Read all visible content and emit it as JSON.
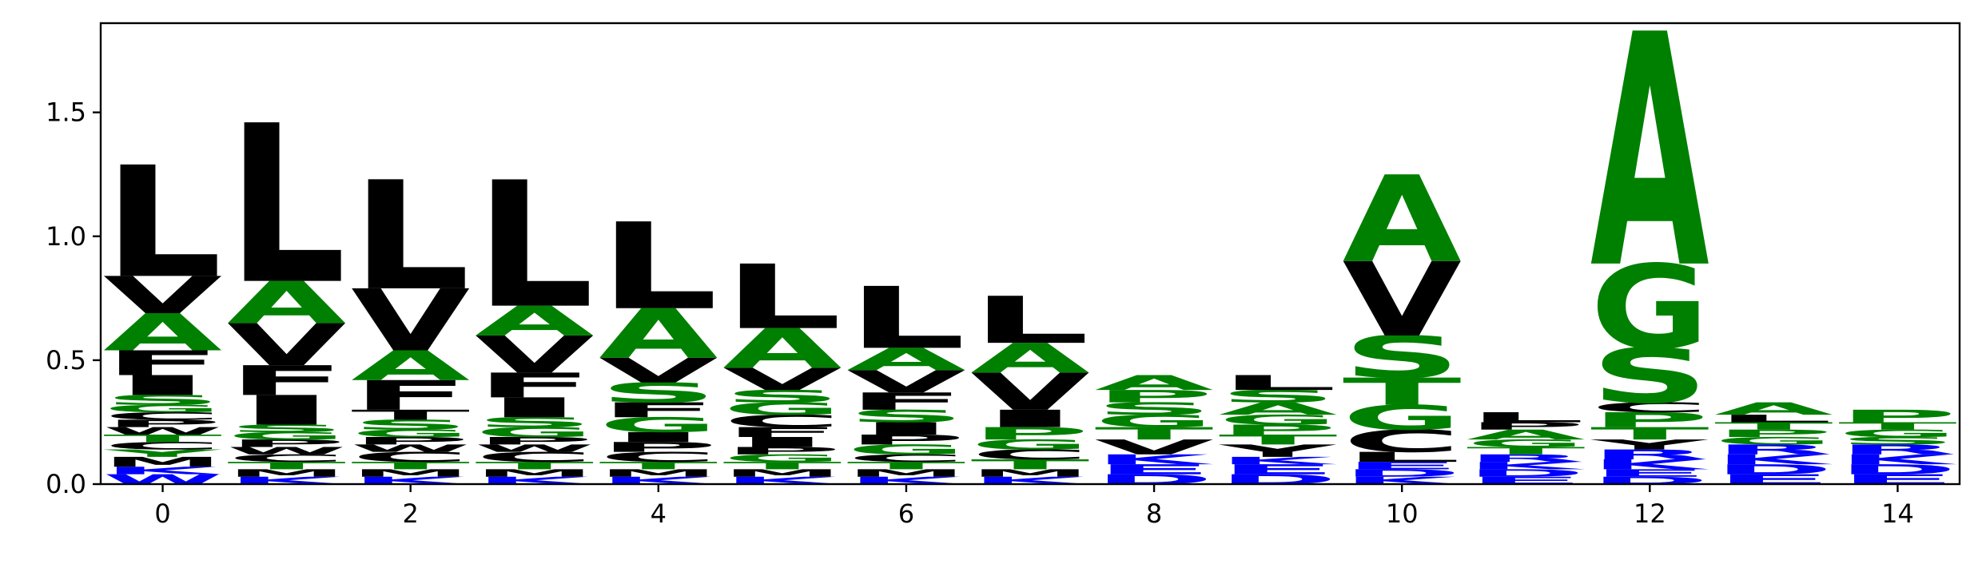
{
  "chart_data": {
    "type": "sequence-logo",
    "title": "",
    "xlabel": "",
    "ylabel": "",
    "xlim": [
      -0.5,
      14.5
    ],
    "ylim": [
      0,
      1.86
    ],
    "x_ticks": [
      0,
      2,
      4,
      6,
      8,
      10,
      12,
      14
    ],
    "x_tick_labels": [
      "0",
      "2",
      "4",
      "6",
      "8",
      "10",
      "12",
      "14"
    ],
    "y_ticks": [
      0.0,
      0.5,
      1.0,
      1.5
    ],
    "y_tick_labels": [
      "0.0",
      "0.5",
      "1.0",
      "1.5"
    ],
    "grid": false,
    "color_scheme": {
      "green": "#008000",
      "blue": "#0000ff",
      "black": "#000000"
    },
    "positions": [
      {
        "pos": 0,
        "stack": [
          {
            "letter": "W",
            "height": 0.04,
            "color": "blue"
          },
          {
            "letter": "K",
            "height": 0.03,
            "color": "blue"
          },
          {
            "letter": "M",
            "height": 0.04,
            "color": "black"
          },
          {
            "letter": "Y",
            "height": 0.03,
            "color": "green"
          },
          {
            "letter": "C",
            "height": 0.03,
            "color": "black"
          },
          {
            "letter": "T",
            "height": 0.03,
            "color": "green"
          },
          {
            "letter": "W",
            "height": 0.03,
            "color": "black"
          },
          {
            "letter": "P",
            "height": 0.03,
            "color": "black"
          },
          {
            "letter": "C",
            "height": 0.03,
            "color": "black"
          },
          {
            "letter": "G",
            "height": 0.03,
            "color": "green"
          },
          {
            "letter": "S",
            "height": 0.04,
            "color": "green"
          },
          {
            "letter": "I",
            "height": 0.08,
            "color": "black"
          },
          {
            "letter": "F",
            "height": 0.1,
            "color": "black"
          },
          {
            "letter": "A",
            "height": 0.15,
            "color": "green"
          },
          {
            "letter": "V",
            "height": 0.15,
            "color": "black"
          },
          {
            "letter": "L",
            "height": 0.45,
            "color": "black"
          }
        ]
      },
      {
        "pos": 1,
        "stack": [
          {
            "letter": "K",
            "height": 0.03,
            "color": "blue"
          },
          {
            "letter": "M",
            "height": 0.03,
            "color": "black"
          },
          {
            "letter": "T",
            "height": 0.03,
            "color": "green"
          },
          {
            "letter": "C",
            "height": 0.03,
            "color": "black"
          },
          {
            "letter": "W",
            "height": 0.03,
            "color": "black"
          },
          {
            "letter": "P",
            "height": 0.03,
            "color": "black"
          },
          {
            "letter": "G",
            "height": 0.03,
            "color": "green"
          },
          {
            "letter": "S",
            "height": 0.03,
            "color": "green"
          },
          {
            "letter": "I",
            "height": 0.12,
            "color": "black"
          },
          {
            "letter": "F",
            "height": 0.12,
            "color": "black"
          },
          {
            "letter": "V",
            "height": 0.17,
            "color": "black"
          },
          {
            "letter": "A",
            "height": 0.17,
            "color": "green"
          },
          {
            "letter": "L",
            "height": 0.64,
            "color": "black"
          }
        ]
      },
      {
        "pos": 2,
        "stack": [
          {
            "letter": "K",
            "height": 0.03,
            "color": "blue"
          },
          {
            "letter": "M",
            "height": 0.03,
            "color": "black"
          },
          {
            "letter": "T",
            "height": 0.03,
            "color": "green"
          },
          {
            "letter": "C",
            "height": 0.04,
            "color": "black"
          },
          {
            "letter": "W",
            "height": 0.03,
            "color": "black"
          },
          {
            "letter": "P",
            "height": 0.03,
            "color": "black"
          },
          {
            "letter": "G",
            "height": 0.03,
            "color": "green"
          },
          {
            "letter": "S",
            "height": 0.04,
            "color": "green"
          },
          {
            "letter": "T",
            "height": 0.04,
            "color": "black"
          },
          {
            "letter": "F",
            "height": 0.12,
            "color": "black"
          },
          {
            "letter": "A",
            "height": 0.12,
            "color": "green"
          },
          {
            "letter": "V",
            "height": 0.25,
            "color": "black"
          },
          {
            "letter": "L",
            "height": 0.44,
            "color": "black"
          }
        ]
      },
      {
        "pos": 3,
        "stack": [
          {
            "letter": "K",
            "height": 0.03,
            "color": "blue"
          },
          {
            "letter": "M",
            "height": 0.03,
            "color": "black"
          },
          {
            "letter": "T",
            "height": 0.03,
            "color": "green"
          },
          {
            "letter": "C",
            "height": 0.04,
            "color": "black"
          },
          {
            "letter": "W",
            "height": 0.03,
            "color": "black"
          },
          {
            "letter": "P",
            "height": 0.03,
            "color": "black"
          },
          {
            "letter": "G",
            "height": 0.04,
            "color": "green"
          },
          {
            "letter": "S",
            "height": 0.04,
            "color": "green"
          },
          {
            "letter": "I",
            "height": 0.08,
            "color": "black"
          },
          {
            "letter": "F",
            "height": 0.1,
            "color": "black"
          },
          {
            "letter": "V",
            "height": 0.15,
            "color": "black"
          },
          {
            "letter": "A",
            "height": 0.12,
            "color": "green"
          },
          {
            "letter": "L",
            "height": 0.51,
            "color": "black"
          }
        ]
      },
      {
        "pos": 4,
        "stack": [
          {
            "letter": "K",
            "height": 0.03,
            "color": "blue"
          },
          {
            "letter": "M",
            "height": 0.03,
            "color": "black"
          },
          {
            "letter": "T",
            "height": 0.03,
            "color": "green"
          },
          {
            "letter": "C",
            "height": 0.04,
            "color": "black"
          },
          {
            "letter": "P",
            "height": 0.04,
            "color": "black"
          },
          {
            "letter": "I",
            "height": 0.04,
            "color": "black"
          },
          {
            "letter": "G",
            "height": 0.06,
            "color": "green"
          },
          {
            "letter": "F",
            "height": 0.06,
            "color": "black"
          },
          {
            "letter": "S",
            "height": 0.08,
            "color": "green"
          },
          {
            "letter": "V",
            "height": 0.1,
            "color": "black"
          },
          {
            "letter": "A",
            "height": 0.2,
            "color": "green"
          },
          {
            "letter": "L",
            "height": 0.35,
            "color": "black"
          }
        ]
      },
      {
        "pos": 5,
        "stack": [
          {
            "letter": "K",
            "height": 0.03,
            "color": "blue"
          },
          {
            "letter": "M",
            "height": 0.03,
            "color": "black"
          },
          {
            "letter": "T",
            "height": 0.03,
            "color": "green"
          },
          {
            "letter": "G",
            "height": 0.03,
            "color": "green"
          },
          {
            "letter": "P",
            "height": 0.03,
            "color": "black"
          },
          {
            "letter": "I",
            "height": 0.04,
            "color": "black"
          },
          {
            "letter": "F",
            "height": 0.04,
            "color": "black"
          },
          {
            "letter": "C",
            "height": 0.05,
            "color": "black"
          },
          {
            "letter": "G",
            "height": 0.05,
            "color": "green"
          },
          {
            "letter": "S",
            "height": 0.05,
            "color": "green"
          },
          {
            "letter": "V",
            "height": 0.09,
            "color": "black"
          },
          {
            "letter": "A",
            "height": 0.16,
            "color": "green"
          },
          {
            "letter": "L",
            "height": 0.26,
            "color": "black"
          }
        ]
      },
      {
        "pos": 6,
        "stack": [
          {
            "letter": "K",
            "height": 0.03,
            "color": "blue"
          },
          {
            "letter": "M",
            "height": 0.03,
            "color": "black"
          },
          {
            "letter": "T",
            "height": 0.03,
            "color": "green"
          },
          {
            "letter": "C",
            "height": 0.03,
            "color": "black"
          },
          {
            "letter": "G",
            "height": 0.04,
            "color": "green"
          },
          {
            "letter": "P",
            "height": 0.04,
            "color": "black"
          },
          {
            "letter": "I",
            "height": 0.05,
            "color": "black"
          },
          {
            "letter": "S",
            "height": 0.05,
            "color": "green"
          },
          {
            "letter": "F",
            "height": 0.07,
            "color": "black"
          },
          {
            "letter": "V",
            "height": 0.09,
            "color": "black"
          },
          {
            "letter": "A",
            "height": 0.09,
            "color": "green"
          },
          {
            "letter": "L",
            "height": 0.25,
            "color": "black"
          }
        ]
      },
      {
        "pos": 7,
        "stack": [
          {
            "letter": "K",
            "height": 0.03,
            "color": "blue"
          },
          {
            "letter": "M",
            "height": 0.03,
            "color": "black"
          },
          {
            "letter": "T",
            "height": 0.04,
            "color": "green"
          },
          {
            "letter": "C",
            "height": 0.04,
            "color": "black"
          },
          {
            "letter": "G",
            "height": 0.04,
            "color": "green"
          },
          {
            "letter": "P",
            "height": 0.05,
            "color": "green"
          },
          {
            "letter": "I",
            "height": 0.07,
            "color": "black"
          },
          {
            "letter": "V",
            "height": 0.15,
            "color": "black"
          },
          {
            "letter": "A",
            "height": 0.12,
            "color": "green"
          },
          {
            "letter": "L",
            "height": 0.19,
            "color": "black"
          }
        ]
      },
      {
        "pos": 8,
        "stack": [
          {
            "letter": "D",
            "height": 0.04,
            "color": "blue"
          },
          {
            "letter": "E",
            "height": 0.04,
            "color": "blue"
          },
          {
            "letter": "K",
            "height": 0.04,
            "color": "blue"
          },
          {
            "letter": "V",
            "height": 0.06,
            "color": "black"
          },
          {
            "letter": "T",
            "height": 0.05,
            "color": "green"
          },
          {
            "letter": "G",
            "height": 0.05,
            "color": "green"
          },
          {
            "letter": "S",
            "height": 0.05,
            "color": "green"
          },
          {
            "letter": "P",
            "height": 0.05,
            "color": "green"
          },
          {
            "letter": "A",
            "height": 0.06,
            "color": "green"
          }
        ]
      },
      {
        "pos": 9,
        "stack": [
          {
            "letter": "D",
            "height": 0.04,
            "color": "blue"
          },
          {
            "letter": "E",
            "height": 0.04,
            "color": "blue"
          },
          {
            "letter": "K",
            "height": 0.03,
            "color": "blue"
          },
          {
            "letter": "Y",
            "height": 0.05,
            "color": "black"
          },
          {
            "letter": "T",
            "height": 0.04,
            "color": "green"
          },
          {
            "letter": "P",
            "height": 0.04,
            "color": "green"
          },
          {
            "letter": "G",
            "height": 0.04,
            "color": "green"
          },
          {
            "letter": "A",
            "height": 0.05,
            "color": "green"
          },
          {
            "letter": "S",
            "height": 0.05,
            "color": "green"
          },
          {
            "letter": "L",
            "height": 0.06,
            "color": "black"
          }
        ]
      },
      {
        "pos": 10,
        "stack": [
          {
            "letter": "K",
            "height": 0.03,
            "color": "blue"
          },
          {
            "letter": "D",
            "height": 0.03,
            "color": "blue"
          },
          {
            "letter": "E",
            "height": 0.03,
            "color": "blue"
          },
          {
            "letter": "L",
            "height": 0.04,
            "color": "black"
          },
          {
            "letter": "C",
            "height": 0.09,
            "color": "black"
          },
          {
            "letter": "G",
            "height": 0.1,
            "color": "green"
          },
          {
            "letter": "T",
            "height": 0.11,
            "color": "green"
          },
          {
            "letter": "S",
            "height": 0.17,
            "color": "green"
          },
          {
            "letter": "V",
            "height": 0.3,
            "color": "black"
          },
          {
            "letter": "A",
            "height": 0.35,
            "color": "green"
          }
        ]
      },
      {
        "pos": 11,
        "stack": [
          {
            "letter": "E",
            "height": 0.03,
            "color": "blue"
          },
          {
            "letter": "D",
            "height": 0.03,
            "color": "blue"
          },
          {
            "letter": "K",
            "height": 0.03,
            "color": "blue"
          },
          {
            "letter": "R",
            "height": 0.03,
            "color": "blue"
          },
          {
            "letter": "T",
            "height": 0.03,
            "color": "green"
          },
          {
            "letter": "G",
            "height": 0.03,
            "color": "green"
          },
          {
            "letter": "A",
            "height": 0.04,
            "color": "green"
          },
          {
            "letter": "P",
            "height": 0.03,
            "color": "black"
          },
          {
            "letter": "L",
            "height": 0.04,
            "color": "black"
          }
        ]
      },
      {
        "pos": 12,
        "stack": [
          {
            "letter": "D",
            "height": 0.03,
            "color": "blue"
          },
          {
            "letter": "E",
            "height": 0.03,
            "color": "blue"
          },
          {
            "letter": "K",
            "height": 0.04,
            "color": "blue"
          },
          {
            "letter": "R",
            "height": 0.04,
            "color": "blue"
          },
          {
            "letter": "Y",
            "height": 0.04,
            "color": "black"
          },
          {
            "letter": "T",
            "height": 0.05,
            "color": "green"
          },
          {
            "letter": "P",
            "height": 0.06,
            "color": "green"
          },
          {
            "letter": "C",
            "height": 0.04,
            "color": "black"
          },
          {
            "letter": "S",
            "height": 0.22,
            "color": "green"
          },
          {
            "letter": "G",
            "height": 0.34,
            "color": "green"
          },
          {
            "letter": "A",
            "height": 0.94,
            "color": "green"
          }
        ]
      },
      {
        "pos": 13,
        "stack": [
          {
            "letter": "E",
            "height": 0.04,
            "color": "blue"
          },
          {
            "letter": "D",
            "height": 0.04,
            "color": "blue"
          },
          {
            "letter": "K",
            "height": 0.04,
            "color": "blue"
          },
          {
            "letter": "R",
            "height": 0.04,
            "color": "blue"
          },
          {
            "letter": "G",
            "height": 0.03,
            "color": "green"
          },
          {
            "letter": "P",
            "height": 0.03,
            "color": "green"
          },
          {
            "letter": "T",
            "height": 0.03,
            "color": "green"
          },
          {
            "letter": "L",
            "height": 0.03,
            "color": "black"
          },
          {
            "letter": "A",
            "height": 0.05,
            "color": "green"
          }
        ]
      },
      {
        "pos": 14,
        "stack": [
          {
            "letter": "E",
            "height": 0.04,
            "color": "blue"
          },
          {
            "letter": "D",
            "height": 0.04,
            "color": "blue"
          },
          {
            "letter": "K",
            "height": 0.04,
            "color": "blue"
          },
          {
            "letter": "R",
            "height": 0.04,
            "color": "blue"
          },
          {
            "letter": "S",
            "height": 0.03,
            "color": "green"
          },
          {
            "letter": "G",
            "height": 0.03,
            "color": "green"
          },
          {
            "letter": "T",
            "height": 0.03,
            "color": "green"
          },
          {
            "letter": "P",
            "height": 0.05,
            "color": "green"
          }
        ]
      }
    ]
  }
}
